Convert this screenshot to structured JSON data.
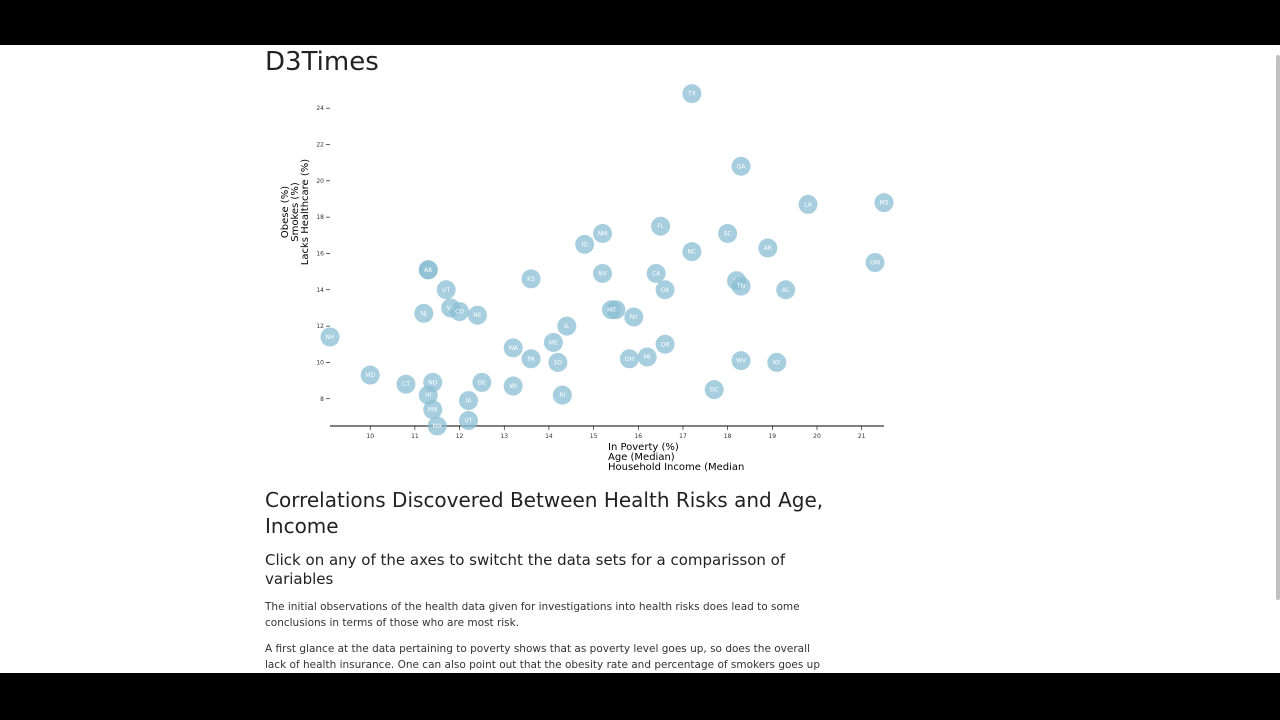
{
  "page": {
    "title": "D3Times"
  },
  "chart_data": {
    "type": "scatter",
    "x_axis": {
      "min": 9.1,
      "max": 21.5,
      "ticks": [
        10,
        11,
        12,
        13,
        14,
        15,
        16,
        17,
        18,
        19,
        20,
        21
      ],
      "labels": [
        "In Poverty (%)",
        "Age (Median)",
        "Household Income (Median"
      ]
    },
    "y_axis": {
      "min": 6.5,
      "max": 25,
      "ticks": [
        8,
        10,
        12,
        14,
        16,
        18,
        20,
        22,
        24
      ],
      "labels": [
        "Lacks Healthcare (%)",
        "Smokes (%)",
        "Obese (%)"
      ]
    },
    "points": [
      {
        "abbr": "TX",
        "x": 17.2,
        "y": 24.8
      },
      {
        "abbr": "GA",
        "x": 18.3,
        "y": 20.8
      },
      {
        "abbr": "LA",
        "x": 19.8,
        "y": 18.7
      },
      {
        "abbr": "MS",
        "x": 21.5,
        "y": 18.8
      },
      {
        "abbr": "FL",
        "x": 16.5,
        "y": 17.5
      },
      {
        "abbr": "SC",
        "x": 18.0,
        "y": 17.1
      },
      {
        "abbr": "NM",
        "x": 15.2,
        "y": 17.1
      },
      {
        "abbr": "ID",
        "x": 14.8,
        "y": 16.5
      },
      {
        "abbr": "NC",
        "x": 17.2,
        "y": 16.1
      },
      {
        "abbr": "AR",
        "x": 18.9,
        "y": 16.3
      },
      {
        "abbr": "WY",
        "x": 11.3,
        "y": 15.1
      },
      {
        "abbr": "AK",
        "x": 11.3,
        "y": 15.1
      },
      {
        "abbr": "NV",
        "x": 15.2,
        "y": 14.9
      },
      {
        "abbr": "CA",
        "x": 16.4,
        "y": 14.9
      },
      {
        "abbr": "KS",
        "x": 13.6,
        "y": 14.6
      },
      {
        "abbr": "AZ",
        "x": 18.2,
        "y": 14.5
      },
      {
        "abbr": "TN",
        "x": 18.3,
        "y": 14.2
      },
      {
        "abbr": "OK",
        "x": 16.6,
        "y": 14.0
      },
      {
        "abbr": "AL",
        "x": 19.3,
        "y": 14.0
      },
      {
        "abbr": "UT",
        "x": 11.7,
        "y": 14.0
      },
      {
        "abbr": "OM",
        "x": 21.3,
        "y": 15.5
      },
      {
        "abbr": "VA",
        "x": 11.8,
        "y": 13.0
      },
      {
        "abbr": "CO",
        "x": 12.0,
        "y": 12.8
      },
      {
        "abbr": "NE",
        "x": 12.4,
        "y": 12.6
      },
      {
        "abbr": "NJ",
        "x": 11.2,
        "y": 12.7
      },
      {
        "abbr": "MO",
        "x": 15.5,
        "y": 12.9
      },
      {
        "abbr": "MT",
        "x": 15.4,
        "y": 12.9
      },
      {
        "abbr": "NY",
        "x": 15.9,
        "y": 12.5
      },
      {
        "abbr": "IL",
        "x": 14.4,
        "y": 12.0
      },
      {
        "abbr": "NH",
        "x": 9.1,
        "y": 11.4
      },
      {
        "abbr": "ME",
        "x": 14.1,
        "y": 11.1
      },
      {
        "abbr": "WA",
        "x": 13.2,
        "y": 10.8
      },
      {
        "abbr": "PA",
        "x": 13.6,
        "y": 10.2
      },
      {
        "abbr": "SD",
        "x": 14.2,
        "y": 10.0
      },
      {
        "abbr": "OH",
        "x": 15.8,
        "y": 10.2
      },
      {
        "abbr": "MI",
        "x": 16.2,
        "y": 10.3
      },
      {
        "abbr": "OR",
        "x": 16.6,
        "y": 11.0
      },
      {
        "abbr": "WV",
        "x": 18.3,
        "y": 10.1
      },
      {
        "abbr": "KY",
        "x": 19.1,
        "y": 10.0
      },
      {
        "abbr": "MD",
        "x": 10.0,
        "y": 9.3
      },
      {
        "abbr": "CT",
        "x": 10.8,
        "y": 8.8
      },
      {
        "abbr": "ND",
        "x": 11.4,
        "y": 8.9
      },
      {
        "abbr": "DE",
        "x": 12.5,
        "y": 8.9
      },
      {
        "abbr": "WI",
        "x": 13.2,
        "y": 8.7
      },
      {
        "abbr": "HI",
        "x": 11.3,
        "y": 8.2
      },
      {
        "abbr": "IA",
        "x": 12.2,
        "y": 7.9
      },
      {
        "abbr": "RI",
        "x": 14.3,
        "y": 8.2
      },
      {
        "abbr": "DC",
        "x": 17.7,
        "y": 8.5
      },
      {
        "abbr": "MN",
        "x": 11.4,
        "y": 7.4
      },
      {
        "abbr": "VT",
        "x": 12.2,
        "y": 6.8
      },
      {
        "abbr": "MA",
        "x": 11.5,
        "y": 6.5
      }
    ]
  },
  "article": {
    "heading": "Correlations Discovered Between Health Risks and Age, Income",
    "subheading": "Click on any of the axes to switcht the data sets for a comparisson of variables",
    "paragraphs": [
      "The initial observations of the health data given for investigations into health risks does lead to some conclusions in terms of those who are most risk.",
      "A first glance at the data pertaining to poverty shows that as poverty level goes up, so does the overall lack of health insurance. One can also point out that the obesity rate and percentage of smokers goes up as well for those in"
    ]
  }
}
